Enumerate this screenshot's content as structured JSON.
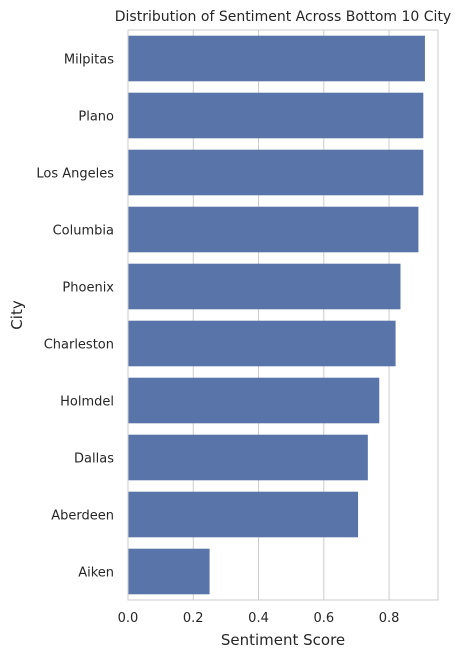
{
  "chart_data": {
    "type": "bar",
    "orientation": "horizontal",
    "title": "Distribution of Sentiment Across Bottom 10 City",
    "xlabel": "Sentiment Score",
    "ylabel": "City",
    "categories": [
      "Milpitas",
      "Plano",
      "Los Angeles",
      "Columbia",
      "Phoenix",
      "Charleston",
      "Holmdel",
      "Dallas",
      "Aberdeen",
      "Aiken"
    ],
    "values": [
      0.91,
      0.905,
      0.905,
      0.89,
      0.835,
      0.82,
      0.77,
      0.735,
      0.705,
      0.25
    ],
    "xlim": [
      0,
      0.95
    ],
    "xticks": [
      "0.0",
      "0.2",
      "0.4",
      "0.6",
      "0.8"
    ],
    "xtick_values": [
      0,
      0.2,
      0.4,
      0.6,
      0.8
    ],
    "grid": "x",
    "bar_color": "#5874a8",
    "grid_color": "#cccccc",
    "spine_color": "#cccccc"
  }
}
